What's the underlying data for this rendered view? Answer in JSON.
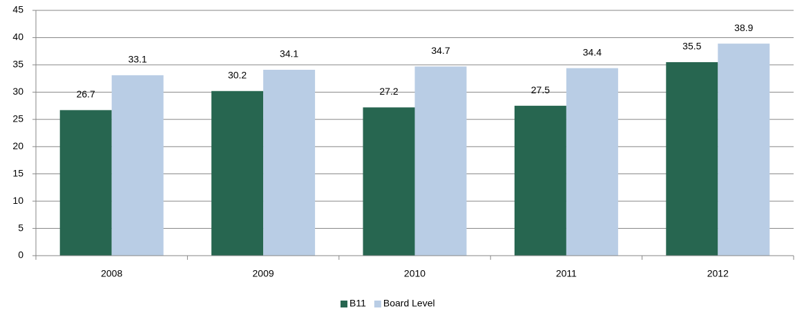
{
  "chart_data": {
    "type": "bar",
    "categories": [
      "2008",
      "2009",
      "2010",
      "2011",
      "2012"
    ],
    "series": [
      {
        "name": "B11",
        "color": "#276650",
        "values": [
          26.7,
          30.2,
          27.2,
          27.5,
          35.5
        ]
      },
      {
        "name": "Board Level",
        "color": "#b9cde5",
        "values": [
          33.1,
          34.1,
          34.7,
          34.4,
          38.9
        ]
      }
    ],
    "ylim": [
      0,
      45
    ],
    "yticks": [
      0,
      5,
      10,
      15,
      20,
      25,
      30,
      35,
      40,
      45
    ],
    "grid": true,
    "legend": "bottom"
  }
}
